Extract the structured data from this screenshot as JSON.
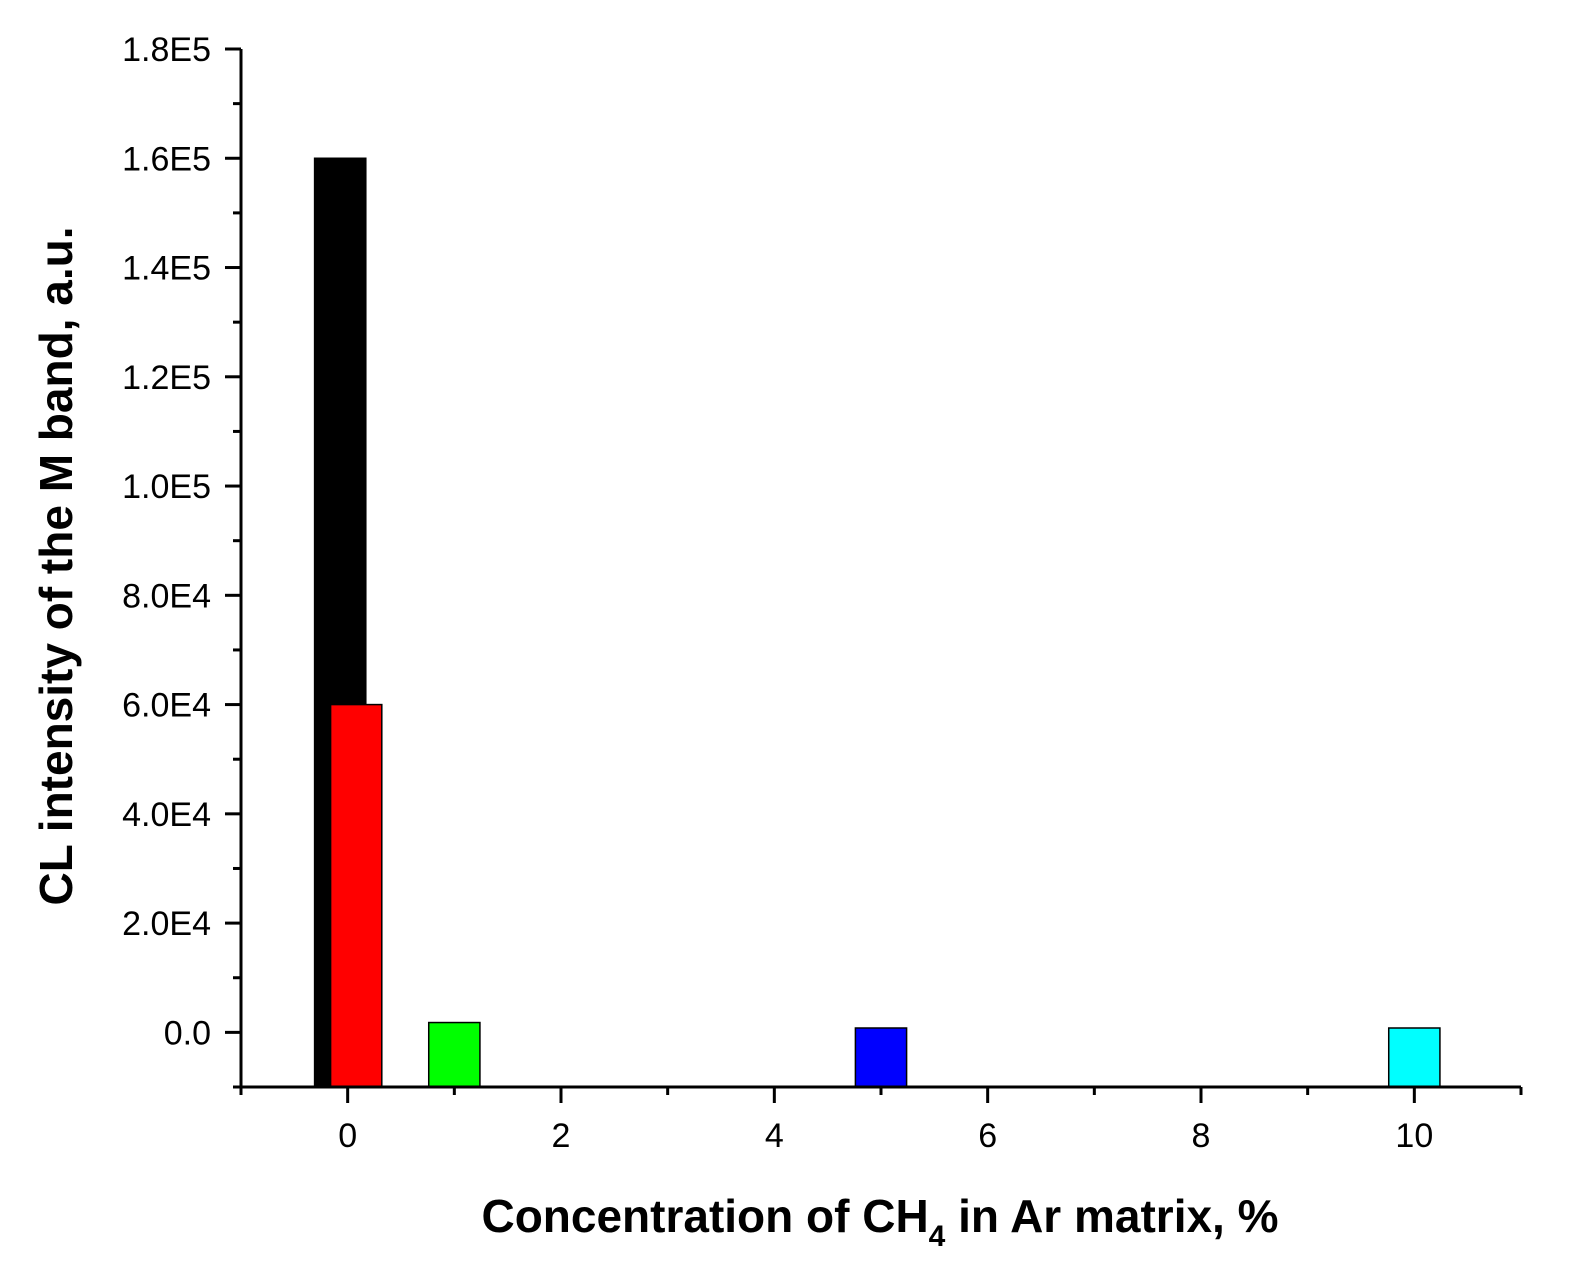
{
  "chart_data": {
    "type": "bar",
    "xlabel_parts": {
      "pre": "Concentration of CH",
      "sub": "4",
      "post": " in Ar matrix, %"
    },
    "ylabel": "CL intensity of the M band, a.u.",
    "xlim": [
      -1,
      11
    ],
    "ylim": [
      -10000,
      180000
    ],
    "x_ticks": [
      0,
      2,
      4,
      6,
      8,
      10
    ],
    "x_tick_labels": [
      "0",
      "2",
      "4",
      "6",
      "8",
      "10"
    ],
    "x_minor_ticks": [
      -1,
      1,
      3,
      5,
      7,
      9,
      11
    ],
    "y_ticks": [
      0,
      20000,
      40000,
      60000,
      80000,
      100000,
      120000,
      140000,
      160000,
      180000
    ],
    "y_tick_labels": [
      "0.0",
      "2.0E4",
      "4.0E4",
      "6.0E4",
      "8.0E4",
      "1.0E5",
      "1.2E5",
      "1.4E5",
      "1.6E5",
      "1.8E5"
    ],
    "y_minor_ticks": [
      -10000,
      10000,
      30000,
      50000,
      70000,
      90000,
      110000,
      130000,
      150000,
      170000
    ],
    "bar_width": 0.48,
    "bars": [
      {
        "x": -0.07,
        "value": 160000,
        "color": "#000000"
      },
      {
        "x": 0.08,
        "value": 60000,
        "color": "#ff0000"
      },
      {
        "x": 1.0,
        "value": 1800,
        "color": "#00ff00"
      },
      {
        "x": 5.0,
        "value": 800,
        "color": "#0000ff"
      },
      {
        "x": 10.0,
        "value": 800,
        "color": "#00ffff"
      }
    ],
    "grid": false,
    "legend": "none"
  }
}
